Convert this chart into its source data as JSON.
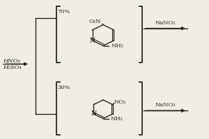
{
  "bg_color": "#f0ece6",
  "text_color": "#2a2520",
  "top_percent": "70%",
  "bot_percent": "30%",
  "top_reagent": "NaNO₂",
  "bot_reagent": "NaNO₂",
  "left_label_top": "HNO₃",
  "left_label_bot": "H₂SO₄"
}
